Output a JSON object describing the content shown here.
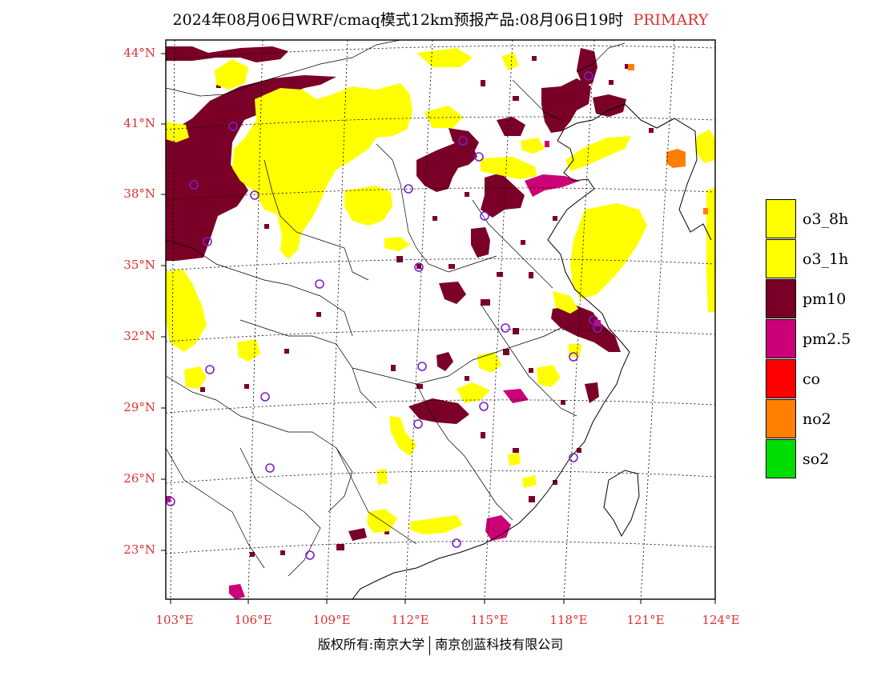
{
  "title": {
    "main": "2024年08月06日WRF/cmaq模式12km预报产品:08月06日19时",
    "tag": "PRIMARY",
    "tag_color": "#e03030"
  },
  "axes": {
    "lat_labels": [
      "44°N",
      "41°N",
      "38°N",
      "35°N",
      "32°N",
      "29°N",
      "26°N",
      "23°N"
    ],
    "lat_values": [
      44,
      41,
      38,
      35,
      32,
      29,
      26,
      23
    ],
    "lon_labels": [
      "103°E",
      "106°E",
      "109°E",
      "112°E",
      "115°E",
      "118°E",
      "121°E",
      "124°E"
    ],
    "lon_values": [
      103,
      106,
      109,
      112,
      115,
      118,
      121,
      124
    ],
    "label_color": "#e03030"
  },
  "legend": {
    "items": [
      {
        "label": "o3_8h",
        "color": "#ffff00"
      },
      {
        "label": "o3_1h",
        "color": "#ffff00"
      },
      {
        "label": "pm10",
        "color": "#7a0028"
      },
      {
        "label": "pm2.5",
        "color": "#cc0077"
      },
      {
        "label": "co",
        "color": "#ff0000"
      },
      {
        "label": "no2",
        "color": "#ff7f00"
      },
      {
        "label": "so2",
        "color": "#00dd00"
      }
    ]
  },
  "copyright": {
    "left": "版权所有:南京大学",
    "right": "南京创蓝科技有限公司"
  }
}
